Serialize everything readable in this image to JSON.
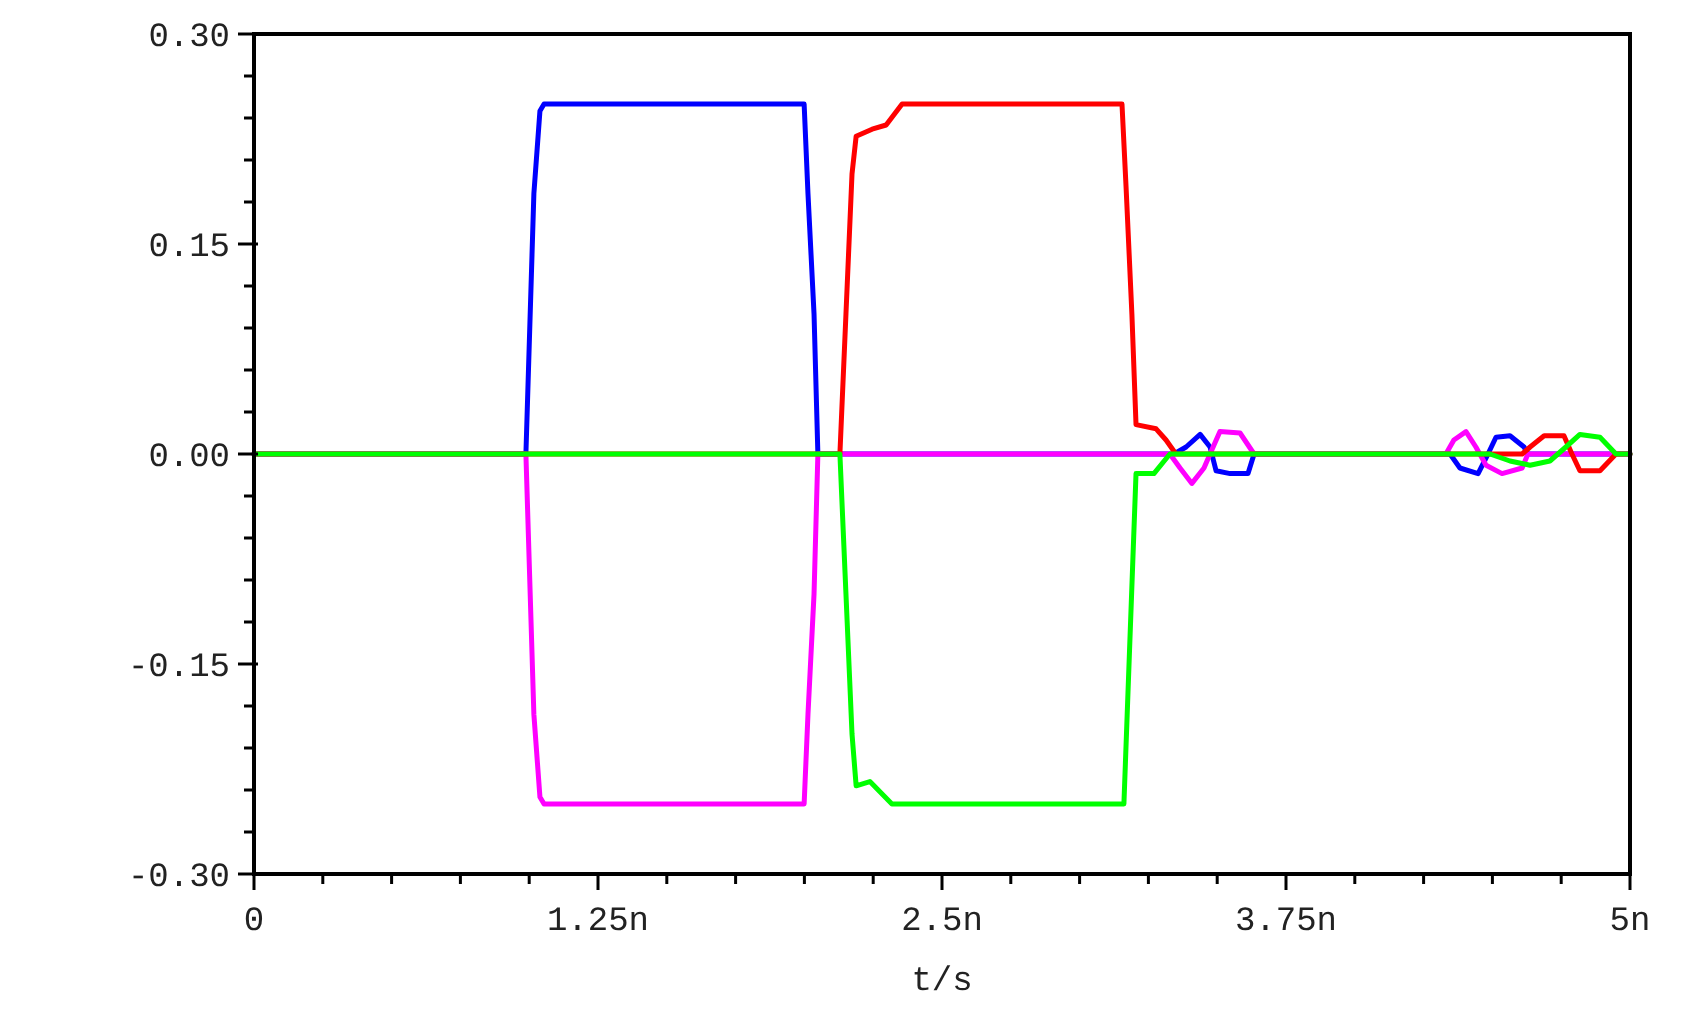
{
  "chart_data": {
    "type": "line",
    "xlabel": "t/s",
    "xlim": [
      0,
      5
    ],
    "ylim": [
      -0.3,
      0.3
    ],
    "xticks": [
      0,
      {
        "value": 0.25,
        "label": null
      },
      {
        "value": 0.5,
        "label": null
      },
      {
        "value": 0.75,
        "label": null
      },
      {
        "value": 1.0,
        "label": null
      },
      {
        "value": 1.25,
        "label": "1.25n"
      },
      {
        "value": 1.5,
        "label": null
      },
      {
        "value": 1.75,
        "label": null
      },
      {
        "value": 2.0,
        "label": null
      },
      {
        "value": 2.25,
        "label": null
      },
      {
        "value": 2.5,
        "label": "2.5n"
      },
      {
        "value": 2.75,
        "label": null
      },
      {
        "value": 3.0,
        "label": null
      },
      {
        "value": 3.25,
        "label": null
      },
      {
        "value": 3.5,
        "label": null
      },
      {
        "value": 3.75,
        "label": "3.75n"
      },
      {
        "value": 4.0,
        "label": null
      },
      {
        "value": 4.25,
        "label": null
      },
      {
        "value": 4.5,
        "label": null
      },
      {
        "value": 4.75,
        "label": null
      },
      {
        "value": 5,
        "label": "5n"
      }
    ],
    "yticks": [
      {
        "value": -0.3,
        "label": "-0.30"
      },
      {
        "value": -0.27,
        "label": null
      },
      {
        "value": -0.24,
        "label": null
      },
      {
        "value": -0.21,
        "label": null
      },
      {
        "value": -0.18,
        "label": null
      },
      {
        "value": -0.15,
        "label": "-0.15"
      },
      {
        "value": -0.12,
        "label": null
      },
      {
        "value": -0.09,
        "label": null
      },
      {
        "value": -0.06,
        "label": null
      },
      {
        "value": -0.03,
        "label": null
      },
      {
        "value": 0,
        "label": "0.00"
      },
      {
        "value": 0.03,
        "label": null
      },
      {
        "value": 0.06,
        "label": null
      },
      {
        "value": 0.09,
        "label": null
      },
      {
        "value": 0.12,
        "label": null
      },
      {
        "value": 0.15,
        "label": "0.15"
      },
      {
        "value": 0.18,
        "label": null
      },
      {
        "value": 0.21,
        "label": null
      },
      {
        "value": 0.24,
        "label": null
      },
      {
        "value": 0.27,
        "label": null
      },
      {
        "value": 0.3,
        "label": "0.30"
      }
    ],
    "grid": false,
    "marker": "none",
    "line_style": "solid",
    "series": [
      {
        "color": "#0000ff",
        "x": [
          0,
          0.988,
          1.017,
          1.039,
          1.054,
          1.999,
          2.013,
          2.035,
          2.049,
          3.343,
          3.387,
          3.438,
          3.474,
          3.496,
          3.547,
          3.612,
          3.634,
          4.346,
          4.382,
          4.448,
          4.484,
          4.513,
          4.564,
          4.615,
          4.629,
          5
        ],
        "values": [
          0,
          0,
          0.186,
          0.245,
          0.25,
          0.25,
          0.186,
          0.1,
          0,
          0,
          0.005,
          0.014,
          0.005,
          -0.012,
          -0.014,
          -0.014,
          0,
          0,
          -0.01,
          -0.014,
          0,
          0.012,
          0.013,
          0.005,
          0,
          0
        ]
      },
      {
        "color": "#ff00ff",
        "x": [
          0,
          0.988,
          1.017,
          1.039,
          1.054,
          1.999,
          2.013,
          2.035,
          2.049,
          3.328,
          3.365,
          3.408,
          3.452,
          3.474,
          3.51,
          3.583,
          3.634,
          4.331,
          4.36,
          4.404,
          4.44,
          4.477,
          4.535,
          4.608,
          4.629,
          5
        ],
        "values": [
          0,
          0,
          -0.186,
          -0.245,
          -0.25,
          -0.25,
          -0.186,
          -0.1,
          0,
          0,
          -0.01,
          -0.021,
          -0.01,
          0,
          0.016,
          0.015,
          0,
          0,
          0.01,
          0.016,
          0.005,
          -0.008,
          -0.014,
          -0.01,
          0,
          0
        ]
      },
      {
        "color": "#ff0000",
        "x": [
          0,
          2.129,
          2.151,
          2.173,
          2.188,
          2.246,
          2.297,
          2.355,
          3.154,
          3.169,
          3.19,
          3.205,
          3.278,
          3.314,
          3.35,
          4.608,
          4.637,
          4.688,
          4.76,
          4.789,
          4.818,
          4.891,
          4.949,
          5
        ],
        "values": [
          0,
          0,
          0.1,
          0.2,
          0.227,
          0.232,
          0.235,
          0.25,
          0.25,
          0.19,
          0.1,
          0.021,
          0.018,
          0.01,
          0,
          0,
          0.005,
          0.013,
          0.013,
          0,
          -0.012,
          -0.012,
          0,
          0
        ]
      },
      {
        "color": "#00ff00",
        "x": [
          0,
          2.129,
          2.151,
          2.173,
          2.188,
          2.238,
          2.318,
          3.161,
          3.205,
          3.27,
          3.328,
          4.491,
          4.564,
          4.637,
          4.709,
          4.767,
          4.818,
          4.891,
          4.949,
          5
        ],
        "values": [
          0,
          0,
          -0.1,
          -0.2,
          -0.237,
          -0.234,
          -0.25,
          -0.25,
          -0.014,
          -0.014,
          0,
          0,
          -0.005,
          -0.008,
          -0.005,
          0.005,
          0.014,
          0.012,
          0,
          0
        ]
      }
    ]
  }
}
